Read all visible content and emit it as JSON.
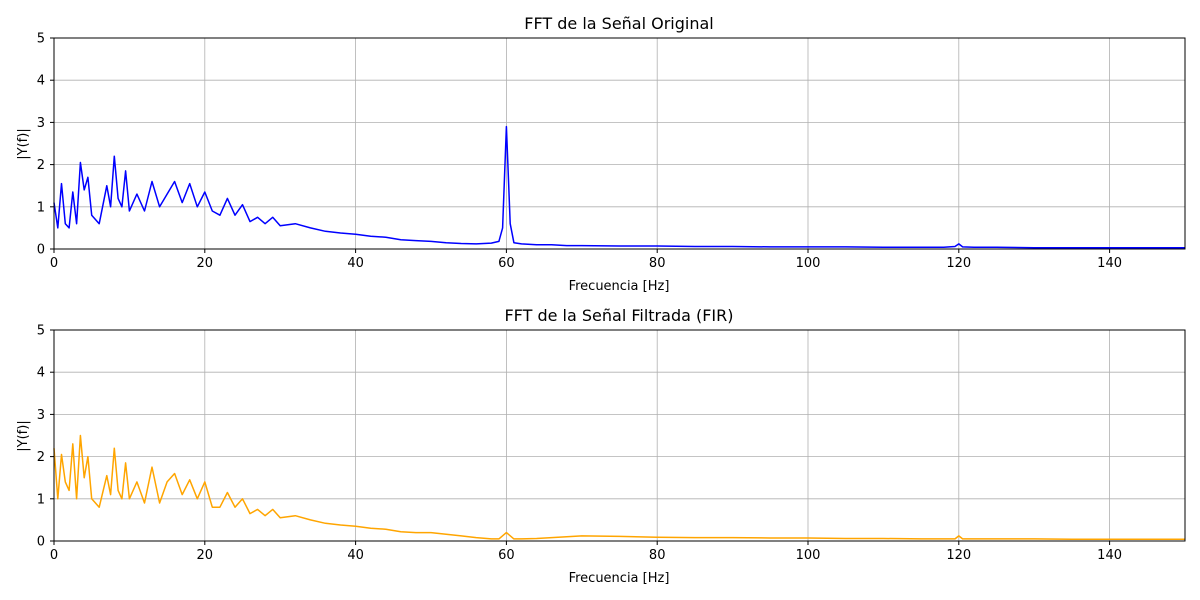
{
  "chart_data": [
    {
      "type": "line",
      "title": "FFT de la Señal Original",
      "xlabel": "Frecuencia [Hz]",
      "ylabel": "|Y(f)|",
      "xlim": [
        0,
        150
      ],
      "ylim": [
        0,
        5
      ],
      "xticks": [
        0,
        20,
        40,
        60,
        80,
        100,
        120,
        140
      ],
      "yticks": [
        0,
        1,
        2,
        3,
        4,
        5
      ],
      "grid": true,
      "color": "#0000ff",
      "series": [
        {
          "x": [
            0,
            0.5,
            1,
            1.5,
            2,
            2.5,
            3,
            3.5,
            4,
            4.5,
            5,
            6,
            7,
            7.5,
            8,
            8.5,
            9,
            9.5,
            10,
            11,
            12,
            13,
            14,
            15,
            16,
            17,
            18,
            19,
            20,
            21,
            22,
            23,
            24,
            25,
            26,
            27,
            28,
            29,
            30,
            32,
            34,
            36,
            38,
            40,
            42,
            44,
            46,
            48,
            50,
            52,
            54,
            56,
            58,
            59,
            59.5,
            60,
            60.5,
            61,
            62,
            64,
            66,
            68,
            70,
            75,
            80,
            85,
            90,
            95,
            100,
            105,
            110,
            115,
            118,
            119.5,
            120,
            120.5,
            122,
            125,
            130,
            135,
            140,
            145,
            150
          ],
          "y": [
            1.1,
            0.5,
            1.55,
            0.6,
            0.5,
            1.35,
            0.6,
            2.05,
            1.4,
            1.7,
            0.8,
            0.6,
            1.5,
            1.0,
            2.2,
            1.2,
            1.0,
            1.85,
            0.9,
            1.3,
            0.9,
            1.6,
            1.0,
            1.3,
            1.6,
            1.1,
            1.55,
            1.0,
            1.35,
            0.9,
            0.8,
            1.2,
            0.8,
            1.05,
            0.65,
            0.75,
            0.6,
            0.75,
            0.55,
            0.6,
            0.5,
            0.42,
            0.38,
            0.35,
            0.3,
            0.28,
            0.22,
            0.2,
            0.18,
            0.15,
            0.13,
            0.12,
            0.14,
            0.18,
            0.5,
            2.9,
            0.6,
            0.15,
            0.12,
            0.1,
            0.1,
            0.08,
            0.08,
            0.07,
            0.07,
            0.06,
            0.06,
            0.05,
            0.05,
            0.05,
            0.04,
            0.04,
            0.04,
            0.06,
            0.12,
            0.05,
            0.04,
            0.04,
            0.03,
            0.03,
            0.03,
            0.03,
            0.03
          ]
        }
      ]
    },
    {
      "type": "line",
      "title": "FFT de la Señal Filtrada (FIR)",
      "xlabel": "Frecuencia [Hz]",
      "ylabel": "|Y(f)|",
      "xlim": [
        0,
        150
      ],
      "ylim": [
        0,
        5
      ],
      "xticks": [
        0,
        20,
        40,
        60,
        80,
        100,
        120,
        140
      ],
      "yticks": [
        0,
        1,
        2,
        3,
        4,
        5
      ],
      "grid": true,
      "color": "#ffa500",
      "series": [
        {
          "x": [
            0,
            0.5,
            1,
            1.5,
            2,
            2.5,
            3,
            3.5,
            4,
            4.5,
            5,
            6,
            7,
            7.5,
            8,
            8.5,
            9,
            9.5,
            10,
            11,
            12,
            13,
            14,
            15,
            16,
            17,
            18,
            19,
            20,
            21,
            22,
            23,
            24,
            25,
            26,
            27,
            28,
            29,
            30,
            32,
            34,
            36,
            38,
            40,
            42,
            44,
            46,
            48,
            50,
            52,
            54,
            56,
            58,
            59,
            60,
            61,
            62,
            64,
            66,
            68,
            70,
            75,
            80,
            85,
            90,
            95,
            100,
            105,
            110,
            115,
            119.5,
            120,
            120.5,
            125,
            130,
            135,
            140,
            145,
            150
          ],
          "y": [
            2.2,
            1.0,
            2.05,
            1.4,
            1.2,
            2.3,
            1.0,
            2.5,
            1.5,
            2.0,
            1.0,
            0.8,
            1.55,
            1.1,
            2.2,
            1.2,
            1.0,
            1.85,
            1.0,
            1.4,
            0.9,
            1.75,
            0.9,
            1.4,
            1.6,
            1.1,
            1.45,
            1.0,
            1.4,
            0.8,
            0.8,
            1.15,
            0.8,
            1.0,
            0.65,
            0.75,
            0.6,
            0.75,
            0.55,
            0.6,
            0.5,
            0.42,
            0.38,
            0.35,
            0.3,
            0.28,
            0.22,
            0.2,
            0.2,
            0.16,
            0.12,
            0.08,
            0.05,
            0.05,
            0.2,
            0.05,
            0.05,
            0.06,
            0.08,
            0.1,
            0.12,
            0.11,
            0.09,
            0.08,
            0.08,
            0.07,
            0.07,
            0.06,
            0.06,
            0.05,
            0.05,
            0.12,
            0.05,
            0.05,
            0.05,
            0.04,
            0.04,
            0.04,
            0.04
          ]
        }
      ]
    }
  ]
}
